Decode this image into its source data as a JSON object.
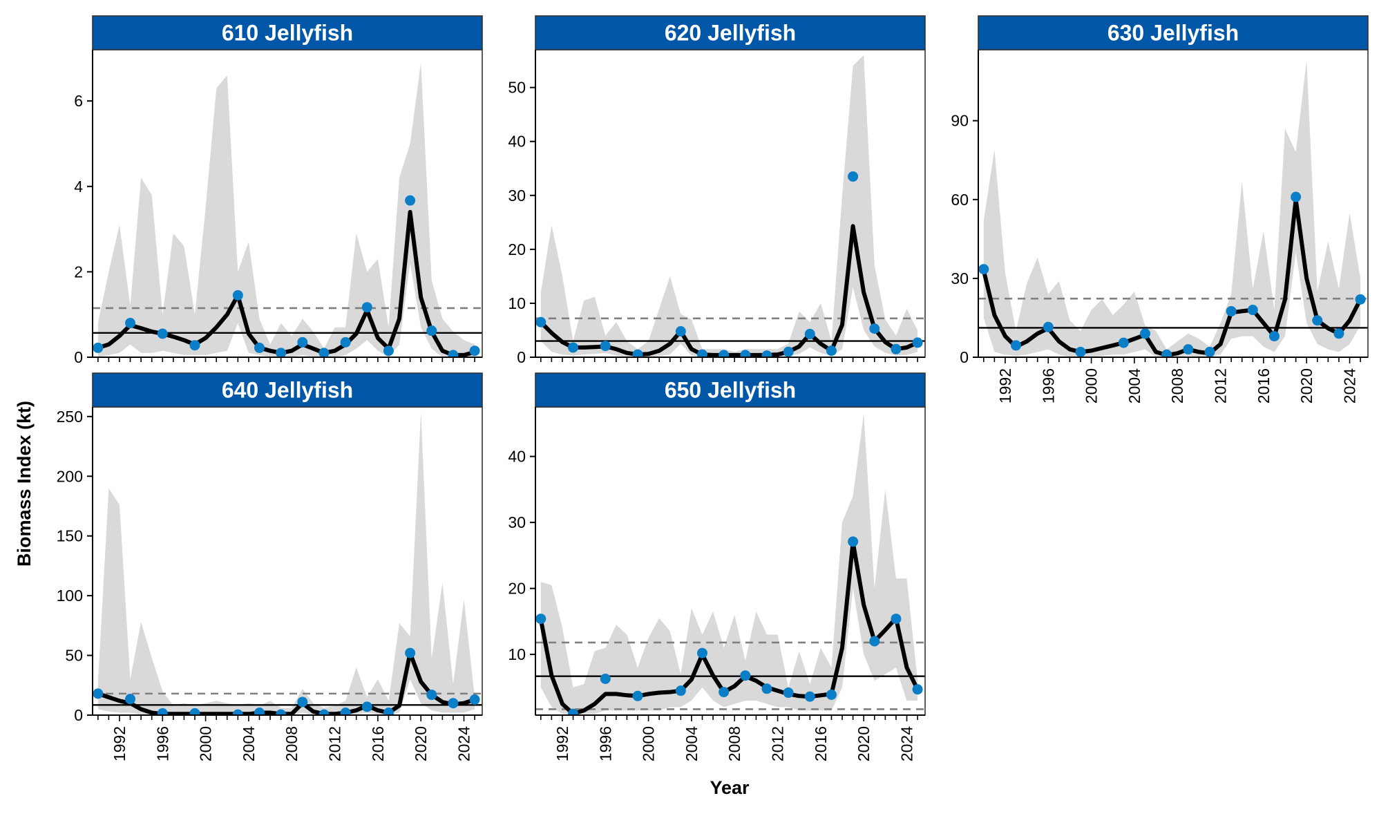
{
  "figure": {
    "ylabel": "Biomass Index (kt)",
    "xlabel": "Year"
  },
  "colors": {
    "strip_bg": "#0057a8",
    "strip_text": "#ffffff",
    "point": "#0a7fc7",
    "line": "#000000",
    "ribbon": "#d9d9d9",
    "mean_line": "#000000",
    "dashed_line": "#7f7f7f"
  },
  "chart_data": [
    {
      "type": "line",
      "title": "610 Jellyfish",
      "xlim": [
        1989.5,
        2025.7
      ],
      "ylim": [
        0,
        7.2
      ],
      "yticks": [
        0,
        2,
        4,
        6
      ],
      "xticks": [
        1992,
        1996,
        2000,
        2004,
        2008,
        2012,
        2016,
        2020,
        2024
      ],
      "show_xaxis": false,
      "smooth": {
        "x": [
          1990,
          1991,
          1992,
          1993,
          1994,
          1995,
          1996,
          1997,
          1998,
          1999,
          2000,
          2001,
          2002,
          2003,
          2004,
          2005,
          2006,
          2007,
          2008,
          2009,
          2010,
          2011,
          2012,
          2013,
          2014,
          2015,
          2016,
          2017,
          2018,
          2019,
          2020,
          2021,
          2022,
          2023,
          2024,
          2025
        ],
        "y": [
          0.22,
          0.3,
          0.5,
          0.75,
          0.68,
          0.6,
          0.55,
          0.48,
          0.4,
          0.3,
          0.45,
          0.7,
          1.0,
          1.45,
          0.55,
          0.22,
          0.15,
          0.1,
          0.15,
          0.3,
          0.2,
          0.1,
          0.15,
          0.3,
          0.55,
          1.1,
          0.45,
          0.2,
          0.9,
          3.4,
          1.4,
          0.6,
          0.15,
          0.05,
          0.05,
          0.12
        ],
        "lower": [
          0,
          0.05,
          0.1,
          0.3,
          0.1,
          0.1,
          0.15,
          0.1,
          0.05,
          0.05,
          0.05,
          0.1,
          0.15,
          0.8,
          0.1,
          0.05,
          0,
          0,
          0,
          0.05,
          0,
          0,
          0,
          0.05,
          0.2,
          0.4,
          0.15,
          0,
          0.3,
          2.2,
          0.7,
          0.2,
          0,
          0,
          0,
          0
        ],
        "upper": [
          0.8,
          2.0,
          3.1,
          1.2,
          4.2,
          3.8,
          1.0,
          2.9,
          2.6,
          1.0,
          3.5,
          6.3,
          6.6,
          2.0,
          2.7,
          0.9,
          0.3,
          0.8,
          0.5,
          0.9,
          0.6,
          0.2,
          0.7,
          0.7,
          2.9,
          2.0,
          2.3,
          0.7,
          4.2,
          5.0,
          6.9,
          1.8,
          0.9,
          0.6,
          0.4,
          0.3
        ]
      },
      "points": {
        "x": [
          1990,
          1993,
          1996,
          1999,
          2003,
          2005,
          2007,
          2009,
          2011,
          2013,
          2015,
          2017,
          2019,
          2021,
          2023,
          2025
        ],
        "y": [
          0.22,
          0.8,
          0.55,
          0.28,
          1.45,
          0.22,
          0.1,
          0.35,
          0.1,
          0.35,
          1.17,
          0.15,
          3.67,
          0.62,
          0.05,
          0.15
        ]
      },
      "mean": 0.57,
      "dashed": [
        1.15
      ]
    },
    {
      "type": "line",
      "title": "620 Jellyfish",
      "xlim": [
        1989.5,
        2025.7
      ],
      "ylim": [
        0,
        57
      ],
      "yticks": [
        0,
        10,
        20,
        30,
        40,
        50
      ],
      "xticks": [
        1992,
        1996,
        2000,
        2004,
        2008,
        2012,
        2016,
        2020,
        2024
      ],
      "show_xaxis": false,
      "smooth": {
        "x": [
          1990,
          1991,
          1992,
          1993,
          1994,
          1995,
          1996,
          1997,
          1998,
          1999,
          2000,
          2001,
          2002,
          2003,
          2004,
          2005,
          2006,
          2007,
          2008,
          2009,
          2010,
          2011,
          2012,
          2013,
          2014,
          2015,
          2016,
          2017,
          2018,
          2019,
          2020,
          2021,
          2022,
          2023,
          2024,
          2025
        ],
        "y": [
          6.5,
          4.5,
          2.8,
          1.8,
          1.8,
          1.9,
          2.0,
          1.5,
          0.8,
          0.5,
          0.6,
          1.2,
          2.5,
          4.8,
          1.5,
          0.5,
          0.4,
          0.4,
          0.4,
          0.4,
          0.4,
          0.4,
          0.5,
          1.0,
          2.0,
          4.3,
          2.5,
          1.2,
          6.0,
          24.3,
          12.0,
          5.3,
          2.8,
          1.5,
          1.8,
          2.7
        ],
        "lower": [
          3,
          1,
          0.5,
          0.3,
          0.5,
          0.6,
          0.8,
          0.3,
          0,
          0,
          0,
          0.2,
          0.5,
          2.5,
          0.3,
          0,
          0,
          0,
          0,
          0,
          0,
          0,
          0,
          0.2,
          0.6,
          1.8,
          0.8,
          0.2,
          1.5,
          13,
          5,
          2,
          0.8,
          0.3,
          0.4,
          1
        ],
        "upper": [
          12,
          24.5,
          15,
          3,
          10.5,
          11.2,
          4,
          6.5,
          3,
          1.5,
          3,
          9,
          15,
          8,
          7,
          1.5,
          1.5,
          1.5,
          1,
          1.5,
          1.5,
          1.5,
          1.5,
          2.5,
          8.5,
          6.5,
          10,
          3,
          30,
          54,
          56,
          17,
          7,
          4,
          9,
          5
        ]
      },
      "points": {
        "x": [
          1990,
          1993,
          1996,
          1999,
          2003,
          2005,
          2007,
          2009,
          2011,
          2013,
          2015,
          2017,
          2019,
          2021,
          2023,
          2025
        ],
        "y": [
          6.5,
          1.8,
          2.1,
          0.5,
          4.8,
          0.5,
          0.4,
          0.4,
          0.3,
          1.0,
          4.3,
          1.2,
          33.5,
          5.3,
          1.5,
          2.7
        ]
      },
      "mean": 3.0,
      "dashed": [
        7.2
      ]
    },
    {
      "type": "line",
      "title": "630 Jellyfish",
      "xlim": [
        1989.5,
        2025.7
      ],
      "ylim": [
        0,
        117
      ],
      "yticks": [
        0,
        30,
        60,
        90
      ],
      "xticks": [
        1992,
        1996,
        2000,
        2004,
        2008,
        2012,
        2016,
        2020,
        2024
      ],
      "show_xaxis": true,
      "smooth": {
        "x": [
          1990,
          1991,
          1992,
          1993,
          1994,
          1995,
          1996,
          1997,
          1998,
          1999,
          2000,
          2001,
          2002,
          2003,
          2004,
          2005,
          2006,
          2007,
          2008,
          2009,
          2010,
          2011,
          2012,
          2013,
          2014,
          2015,
          2016,
          2017,
          2018,
          2019,
          2020,
          2021,
          2022,
          2023,
          2024,
          2025
        ],
        "y": [
          33,
          16,
          8,
          4,
          6,
          9,
          11,
          6,
          3,
          2,
          2.5,
          3.5,
          4.5,
          5.5,
          7,
          8.5,
          2,
          0.8,
          1.5,
          3,
          2,
          1.5,
          5,
          17,
          17.5,
          18,
          13,
          8,
          22,
          60,
          30,
          14,
          11,
          9,
          14,
          22
        ],
        "lower": [
          15,
          2,
          1,
          0.5,
          1,
          2,
          3,
          1,
          0,
          0,
          0,
          0.5,
          1,
          1,
          2,
          3,
          0,
          0,
          0,
          0.5,
          0,
          0,
          1,
          7,
          8,
          8,
          4,
          2,
          8,
          40,
          13,
          5,
          3,
          2,
          5,
          12
        ],
        "upper": [
          52,
          79,
          32,
          10,
          28,
          38,
          24,
          29,
          14,
          10,
          18,
          22,
          16,
          20,
          25,
          12,
          10,
          3,
          6,
          9,
          7,
          4,
          13,
          24,
          67,
          26,
          48,
          18,
          87,
          78,
          113,
          25,
          44,
          26,
          55,
          30
        ]
      },
      "points": {
        "x": [
          1990,
          1993,
          1996,
          1999,
          2003,
          2005,
          2007,
          2009,
          2011,
          2013,
          2015,
          2017,
          2019,
          2021,
          2023,
          2025
        ],
        "y": [
          33.5,
          4.5,
          11.5,
          2,
          5.5,
          9,
          1,
          3,
          2,
          17.5,
          18,
          8,
          61,
          14,
          9,
          22
        ]
      },
      "mean": 11.2,
      "dashed": [
        22.3
      ]
    },
    {
      "type": "line",
      "title": "640 Jellyfish",
      "xlim": [
        1989.5,
        2025.7
      ],
      "ylim": [
        0,
        258
      ],
      "yticks": [
        0,
        50,
        100,
        150,
        200,
        250
      ],
      "xticks": [
        1992,
        1996,
        2000,
        2004,
        2008,
        2012,
        2016,
        2020,
        2024
      ],
      "show_xaxis": true,
      "smooth": {
        "x": [
          1990,
          1991,
          1992,
          1993,
          1994,
          1995,
          1996,
          1997,
          1998,
          1999,
          2000,
          2001,
          2002,
          2003,
          2004,
          2005,
          2006,
          2007,
          2008,
          2009,
          2010,
          2011,
          2012,
          2013,
          2014,
          2015,
          2016,
          2017,
          2018,
          2019,
          2020,
          2021,
          2022,
          2023,
          2024,
          2025
        ],
        "y": [
          18,
          15,
          12,
          10,
          5,
          2,
          1,
          1,
          1,
          1,
          1,
          1,
          1,
          1,
          1,
          2,
          2,
          1,
          1,
          10,
          3,
          1,
          1,
          2,
          4,
          8,
          4,
          2,
          8,
          52,
          28,
          17,
          11,
          9,
          10,
          13
        ],
        "lower": [
          5,
          3,
          2,
          2,
          0.5,
          0,
          0,
          0,
          0,
          0,
          0,
          0,
          0,
          0,
          0,
          0,
          0,
          0,
          0,
          2,
          0,
          0,
          0,
          0,
          0.5,
          2,
          0.5,
          0,
          2,
          30,
          10,
          4,
          2,
          2,
          2,
          5
        ],
        "upper": [
          28,
          190,
          176,
          30,
          78,
          48,
          20,
          8,
          10,
          8,
          10,
          12,
          10,
          8,
          10,
          8,
          12,
          6,
          6,
          22,
          10,
          6,
          8,
          12,
          40,
          15,
          30,
          12,
          77,
          66,
          254,
          47,
          111,
          26,
          97,
          15
        ]
      },
      "points": {
        "x": [
          1990,
          1993,
          1996,
          1999,
          2003,
          2005,
          2007,
          2009,
          2011,
          2013,
          2015,
          2017,
          2019,
          2021,
          2023,
          2025
        ],
        "y": [
          18,
          13.5,
          1.5,
          1.5,
          0.5,
          2,
          0.5,
          11,
          0.5,
          2,
          7,
          2,
          52,
          17,
          10,
          13
        ]
      },
      "mean": 8.5,
      "dashed": [
        18
      ]
    },
    {
      "type": "line",
      "title": "650 Jellyfish",
      "xlim": [
        1989.5,
        2025.7
      ],
      "ylim": [
        0.8,
        47.5
      ],
      "yticks": [
        10,
        20,
        30,
        40
      ],
      "xticks": [
        1992,
        1996,
        2000,
        2004,
        2008,
        2012,
        2016,
        2020,
        2024
      ],
      "show_xaxis": true,
      "smooth": {
        "x": [
          1990,
          1991,
          1992,
          1993,
          1994,
          1995,
          1996,
          1997,
          1998,
          1999,
          2000,
          2001,
          2002,
          2003,
          2004,
          2005,
          2006,
          2007,
          2008,
          2009,
          2010,
          2011,
          2012,
          2013,
          2014,
          2015,
          2016,
          2017,
          2018,
          2019,
          2020,
          2021,
          2022,
          2023,
          2024,
          2025
        ],
        "y": [
          15.3,
          6.8,
          2.5,
          1.0,
          1.5,
          2.5,
          4.0,
          4.0,
          3.8,
          3.7,
          4.0,
          4.2,
          4.3,
          4.5,
          6.2,
          10.0,
          6.8,
          4.3,
          5.2,
          6.7,
          6.0,
          5.0,
          4.5,
          4.0,
          3.7,
          3.6,
          3.8,
          4.0,
          11.0,
          27.0,
          17.5,
          12.0,
          13.7,
          15.5,
          8.0,
          4.7
        ],
        "lower": [
          5,
          2,
          1,
          1,
          1,
          1,
          1.5,
          1.5,
          1.5,
          1.5,
          1.5,
          1.5,
          2,
          2,
          3,
          5,
          3,
          2,
          2.5,
          3,
          3,
          2.5,
          2,
          2,
          1.5,
          1.5,
          1.5,
          1.5,
          5,
          20,
          10,
          6,
          7,
          8,
          3,
          3
        ],
        "upper": [
          21,
          20.5,
          14,
          5,
          5.5,
          10.5,
          11,
          14.5,
          13,
          8,
          12.5,
          15.5,
          13.5,
          7,
          17,
          13,
          16.5,
          11,
          16,
          9,
          16.5,
          13,
          13,
          5,
          10.5,
          5.5,
          11,
          8,
          30,
          34,
          46.5,
          20,
          35,
          21.5,
          21.5,
          6
        ]
      },
      "points": {
        "x": [
          1990,
          1993,
          1996,
          1999,
          2003,
          2005,
          2007,
          2009,
          2011,
          2013,
          2015,
          2017,
          2019,
          2021,
          2023,
          2025
        ],
        "y": [
          15.4,
          1.0,
          6.3,
          3.7,
          4.5,
          10.2,
          4.3,
          6.8,
          4.8,
          4.2,
          3.6,
          3.9,
          27.1,
          12.0,
          15.4,
          4.7
        ]
      },
      "mean": 6.7,
      "dashed": [
        11.8,
        1.7
      ]
    }
  ]
}
